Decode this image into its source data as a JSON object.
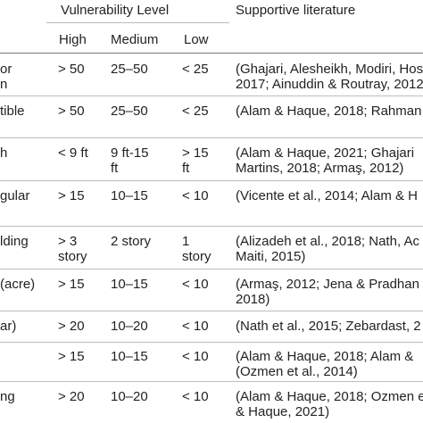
{
  "table": {
    "header": {
      "vulnerability_level": "Vulnerability Level",
      "supportive_literature": "Supportive literature",
      "high": "High",
      "medium": "Medium",
      "low": "Low"
    },
    "rows": [
      {
        "factor": [
          "or",
          "n"
        ],
        "high": [
          "> 50"
        ],
        "medium": [
          "25–50"
        ],
        "low": [
          "< 25"
        ],
        "literature": [
          "(Ghajari, Alesheikh, Modiri, Hos",
          "2017; Ainuddin & Routray, 2012"
        ]
      },
      {
        "factor": [
          "tible"
        ],
        "high": [
          "> 50"
        ],
        "medium": [
          "25–50"
        ],
        "low": [
          "< 25"
        ],
        "literature": [
          "(Alam & Haque, 2018; Rahman"
        ]
      },
      {
        "factor": [
          "h"
        ],
        "high": [
          "< 9 ft"
        ],
        "medium": [
          "9 ft-15",
          "ft"
        ],
        "low": [
          "> 15",
          "ft"
        ],
        "literature": [
          "(Alam & Haque, 2021; Ghajari",
          "Martins, 2018; Armaş, 2012)"
        ]
      },
      {
        "factor": [
          "gular"
        ],
        "high": [
          "> 15"
        ],
        "medium": [
          "10–15"
        ],
        "low": [
          "< 10"
        ],
        "literature": [
          "(Vicente et al., 2014; Alam & H"
        ]
      },
      {
        "factor": [
          "lding"
        ],
        "high": [
          "> 3",
          "story"
        ],
        "medium": [
          "2 story"
        ],
        "low": [
          "1",
          "story"
        ],
        "literature": [
          "(Alizadeh et al., 2018; Nath, Ac",
          "Maiti, 2015)"
        ]
      },
      {
        "factor": [
          "(acre)"
        ],
        "high": [
          "> 15"
        ],
        "medium": [
          "10–15"
        ],
        "low": [
          "< 10"
        ],
        "literature": [
          "(Armaş, 2012; Jena & Pradhan",
          "2018)"
        ]
      },
      {
        "factor": [
          "ar)"
        ],
        "high": [
          "> 20"
        ],
        "medium": [
          "10–20"
        ],
        "low": [
          "< 10"
        ],
        "literature": [
          "(Nath et al., 2015; Zebardast, 2"
        ]
      },
      {
        "factor": [
          ""
        ],
        "high": [
          "> 15"
        ],
        "medium": [
          "10–15"
        ],
        "low": [
          "< 10"
        ],
        "literature": [
          "(Alam & Haque, 2018; Alam &",
          "(Ozmen et al., 2014)"
        ]
      },
      {
        "factor": [
          "ng"
        ],
        "high": [
          "> 20"
        ],
        "medium": [
          "10–20"
        ],
        "low": [
          "< 10"
        ],
        "literature": [
          "(Alam & Haque, 2018; Ozmen e",
          "& Haque, 2021)"
        ]
      }
    ]
  }
}
